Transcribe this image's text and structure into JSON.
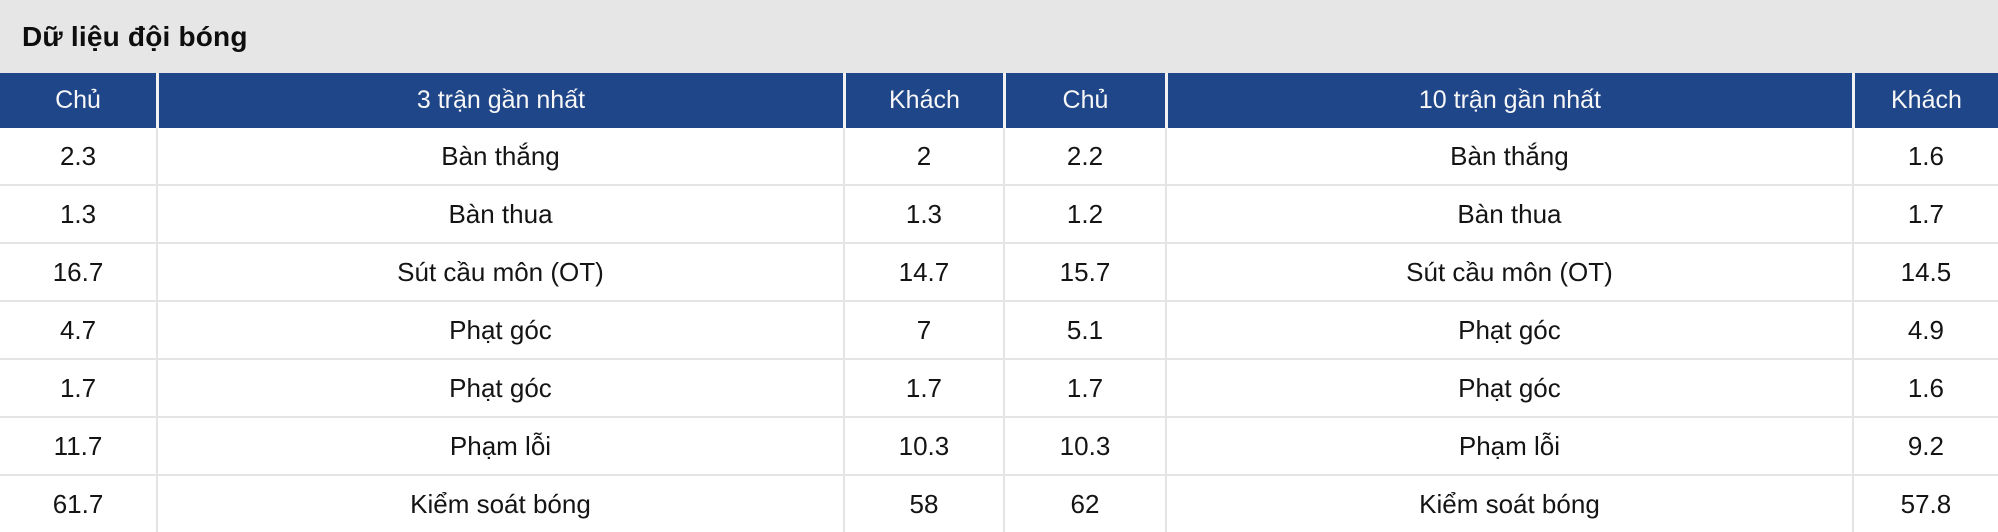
{
  "title": "Dữ liệu đội bóng",
  "colors": {
    "header_bg": "#1f4689",
    "title_bar_bg": "#e6e6e6",
    "row_separator": "#e4e4e4",
    "header_text": "#f7f7f7",
    "data_text": "#141414"
  },
  "table": {
    "headers": [
      "Chủ",
      "3 trận gần nhất",
      "Khách",
      "Chủ",
      "10 trận gần nhất",
      "Khách"
    ],
    "rows": [
      [
        "2.3",
        "Bàn thắng",
        "2",
        "2.2",
        "Bàn thắng",
        "1.6"
      ],
      [
        "1.3",
        "Bàn thua",
        "1.3",
        "1.2",
        "Bàn thua",
        "1.7"
      ],
      [
        "16.7",
        "Sút cầu môn (OT)",
        "14.7",
        "15.7",
        "Sút cầu môn (OT)",
        "14.5"
      ],
      [
        "4.7",
        "Phạt góc",
        "7",
        "5.1",
        "Phạt góc",
        "4.9"
      ],
      [
        "1.7",
        "Phạt góc",
        "1.7",
        "1.7",
        "Phạt góc",
        "1.6"
      ],
      [
        "11.7",
        "Phạm lỗi",
        "10.3",
        "10.3",
        "Phạm lỗi",
        "9.2"
      ],
      [
        "61.7",
        "Kiểm soát bóng",
        "58",
        "62",
        "Kiểm soát bóng",
        "57.8"
      ]
    ]
  }
}
